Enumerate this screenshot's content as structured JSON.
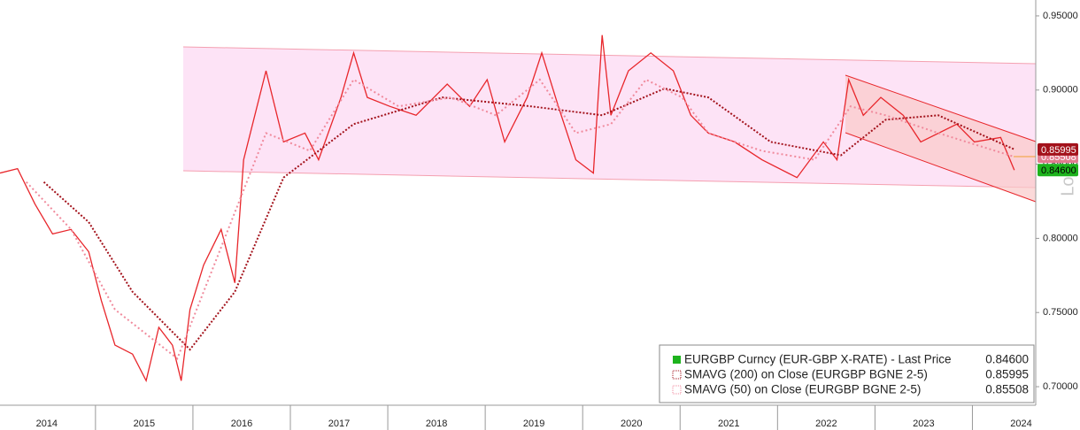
{
  "chart_data": {
    "type": "line",
    "scale_label": "Log",
    "xlim": [
      2014.02,
      2024.65
    ],
    "ylim": [
      0.6875,
      0.9607
    ],
    "xticks": [
      {
        "value": 2014.5,
        "label": "2014"
      },
      {
        "value": 2015.5,
        "label": "2015"
      },
      {
        "value": 2016.5,
        "label": "2016"
      },
      {
        "value": 2017.5,
        "label": "2017"
      },
      {
        "value": 2018.5,
        "label": "2018"
      },
      {
        "value": 2019.5,
        "label": "2019"
      },
      {
        "value": 2020.5,
        "label": "2020"
      },
      {
        "value": 2021.5,
        "label": "2021"
      },
      {
        "value": 2022.5,
        "label": "2022"
      },
      {
        "value": 2023.5,
        "label": "2023"
      },
      {
        "value": 2024.5,
        "label": "2024"
      }
    ],
    "yticks": [
      {
        "value": 0.7,
        "label": "0.70000"
      },
      {
        "value": 0.75,
        "label": "0.75000"
      },
      {
        "value": 0.8,
        "label": "0.80000"
      },
      {
        "value": 0.85,
        "label": "0.85000"
      },
      {
        "value": 0.9,
        "label": "0.90000"
      },
      {
        "value": 0.95,
        "label": "0.95000"
      }
    ],
    "series": [
      {
        "name": "EURGBP Curncy (EUR-GBP X-RATE) - Last Price",
        "color": "#e8262b",
        "last": 0.846,
        "last_label": "0.84600",
        "badge_color": "#1db31d",
        "x": [
          2014.02,
          2014.2,
          2014.38,
          2014.56,
          2014.75,
          2014.93,
          2015.06,
          2015.2,
          2015.38,
          2015.52,
          2015.65,
          2015.79,
          2015.88,
          2015.97,
          2016.11,
          2016.29,
          2016.43,
          2016.52,
          2016.75,
          2016.93,
          2017.15,
          2017.29,
          2017.52,
          2017.65,
          2017.79,
          2018.02,
          2018.29,
          2018.61,
          2018.84,
          2019.02,
          2019.2,
          2019.43,
          2019.58,
          2019.75,
          2019.93,
          2020.11,
          2020.2,
          2020.29,
          2020.47,
          2020.7,
          2020.93,
          2021.11,
          2021.29,
          2021.56,
          2021.84,
          2022.2,
          2022.47,
          2022.61,
          2022.73,
          2022.88,
          2023.06,
          2023.29,
          2023.47,
          2023.84,
          2024.02,
          2024.29,
          2024.43
        ],
        "values": [
          0.844,
          0.847,
          0.823,
          0.803,
          0.806,
          0.791,
          0.758,
          0.728,
          0.722,
          0.704,
          0.74,
          0.728,
          0.704,
          0.752,
          0.782,
          0.806,
          0.77,
          0.853,
          0.913,
          0.865,
          0.871,
          0.853,
          0.895,
          0.925,
          0.895,
          0.889,
          0.883,
          0.904,
          0.889,
          0.907,
          0.865,
          0.895,
          0.925,
          0.889,
          0.853,
          0.844,
          0.937,
          0.883,
          0.913,
          0.925,
          0.913,
          0.883,
          0.871,
          0.865,
          0.853,
          0.841,
          0.865,
          0.853,
          0.907,
          0.883,
          0.895,
          0.883,
          0.865,
          0.877,
          0.865,
          0.868,
          0.846
        ]
      },
      {
        "name": "SMAVG (200)  on Close (EURGBP BGNE 2-5)",
        "color": "#a3121b",
        "last": 0.85995,
        "last_label": "0.85995",
        "badge_color": "#a3121b",
        "x": [
          2014.47,
          2014.93,
          2015.38,
          2015.97,
          2016.43,
          2016.93,
          2017.65,
          2018.56,
          2019.47,
          2020.2,
          2020.84,
          2021.29,
          2021.93,
          2022.65,
          2023.11,
          2023.65,
          2024.43
        ],
        "values": [
          0.838,
          0.811,
          0.764,
          0.725,
          0.764,
          0.841,
          0.877,
          0.895,
          0.889,
          0.883,
          0.901,
          0.895,
          0.865,
          0.856,
          0.88,
          0.883,
          0.86
        ]
      },
      {
        "name": "SMAVG (50)  on Close (EURGBP BGNE 2-5)",
        "color": "#f08a9c",
        "last": 0.85508,
        "last_label": "0.85508",
        "badge_color": "#e27d8f",
        "x": [
          2014.29,
          2014.75,
          2015.2,
          2015.84,
          2016.29,
          2016.75,
          2017.2,
          2017.65,
          2018.11,
          2018.65,
          2019.11,
          2019.56,
          2019.93,
          2020.29,
          2020.65,
          2021.02,
          2021.29,
          2021.84,
          2022.38,
          2022.75,
          2023.11,
          2023.65,
          2024.43
        ],
        "values": [
          0.838,
          0.806,
          0.752,
          0.719,
          0.794,
          0.871,
          0.859,
          0.907,
          0.889,
          0.895,
          0.883,
          0.907,
          0.871,
          0.877,
          0.907,
          0.895,
          0.871,
          0.859,
          0.853,
          0.889,
          0.883,
          0.871,
          0.855
        ]
      }
    ]
  }
}
